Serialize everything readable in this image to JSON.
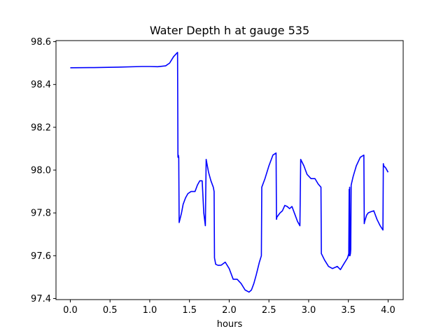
{
  "chart_data": {
    "type": "line",
    "title": "Water Depth h at gauge 535",
    "xlabel": "hours",
    "ylabel": "",
    "xlim": [
      -0.18,
      4.19
    ],
    "ylim": [
      97.395,
      98.605
    ],
    "xticks": [
      0.0,
      0.5,
      1.0,
      1.5,
      2.0,
      2.5,
      3.0,
      3.5,
      4.0
    ],
    "xtick_labels": [
      "0.0",
      "0.5",
      "1.0",
      "1.5",
      "2.0",
      "2.5",
      "3.0",
      "3.5",
      "4.0"
    ],
    "yticks": [
      97.4,
      97.6,
      97.8,
      98.0,
      98.2,
      98.4,
      98.6
    ],
    "ytick_labels": [
      "97.4",
      "97.6",
      "97.8",
      "98.0",
      "98.2",
      "98.4",
      "98.6"
    ],
    "grid": false,
    "series": [
      {
        "color": "#0000ff",
        "x": [
          0.0,
          0.3,
          0.6,
          0.9,
          1.0,
          1.1,
          1.2,
          1.25,
          1.3,
          1.35,
          1.355,
          1.36,
          1.365,
          1.37,
          1.38,
          1.4,
          1.42,
          1.45,
          1.48,
          1.52,
          1.57,
          1.6,
          1.63,
          1.66,
          1.68,
          1.7,
          1.705,
          1.71,
          1.74,
          1.77,
          1.8,
          1.81,
          1.815,
          1.83,
          1.86,
          1.9,
          1.95,
          2.0,
          2.05,
          2.1,
          2.15,
          2.2,
          2.25,
          2.28,
          2.31,
          2.34,
          2.38,
          2.405,
          2.41,
          2.45,
          2.5,
          2.55,
          2.59,
          2.595,
          2.6,
          2.64,
          2.67,
          2.7,
          2.73,
          2.76,
          2.79,
          2.82,
          2.86,
          2.89,
          2.895,
          2.9,
          2.94,
          2.98,
          3.03,
          3.08,
          3.12,
          3.155,
          3.16,
          3.2,
          3.25,
          3.3,
          3.36,
          3.4,
          3.44,
          3.49,
          3.505,
          3.51,
          3.513,
          3.516,
          3.52,
          3.526,
          3.53,
          3.535,
          3.56,
          3.6,
          3.65,
          3.695,
          3.7,
          3.705,
          3.73,
          3.75,
          3.78,
          3.82,
          3.86,
          3.9,
          3.935,
          3.94,
          3.945,
          3.97,
          4.0
        ],
        "y": [
          98.478,
          98.479,
          98.481,
          98.484,
          98.484,
          98.483,
          98.487,
          98.5,
          98.53,
          98.55,
          98.06,
          98.07,
          98.06,
          97.755,
          97.77,
          97.8,
          97.84,
          97.87,
          97.89,
          97.9,
          97.9,
          97.93,
          97.95,
          97.95,
          97.8,
          97.74,
          97.9,
          98.05,
          97.99,
          97.95,
          97.92,
          97.9,
          97.59,
          97.56,
          97.555,
          97.556,
          97.57,
          97.54,
          97.49,
          97.49,
          97.47,
          97.44,
          97.43,
          97.44,
          97.47,
          97.51,
          97.57,
          97.6,
          97.92,
          97.96,
          98.02,
          98.07,
          98.08,
          97.77,
          97.78,
          97.8,
          97.81,
          97.835,
          97.83,
          97.82,
          97.83,
          97.8,
          97.76,
          97.74,
          97.9,
          98.05,
          98.02,
          97.98,
          97.96,
          97.96,
          97.935,
          97.92,
          97.61,
          97.58,
          97.55,
          97.54,
          97.55,
          97.535,
          97.56,
          97.59,
          97.61,
          97.91,
          97.6,
          97.92,
          97.6,
          97.61,
          97.63,
          97.93,
          97.97,
          98.02,
          98.06,
          98.07,
          97.75,
          97.76,
          97.79,
          97.8,
          97.805,
          97.81,
          97.77,
          97.74,
          97.72,
          98.03,
          98.02,
          98.01,
          97.99
        ]
      }
    ]
  }
}
